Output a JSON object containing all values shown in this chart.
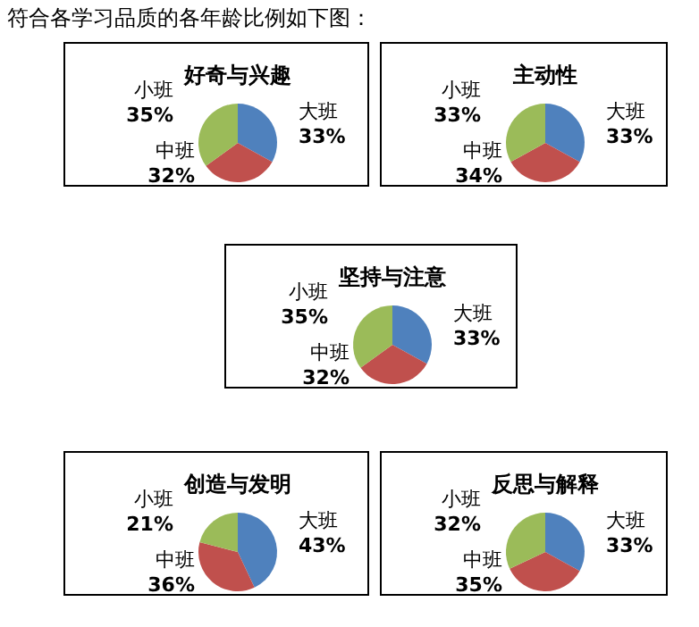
{
  "chart_data": [
    {
      "type": "pie",
      "title": "好奇与兴趣",
      "annotations": [
        "符合各学习品质的各年龄比例如下图："
      ],
      "categories": [
        "大班",
        "中班",
        "小班"
      ],
      "values": [
        33,
        32,
        35
      ],
      "colors": [
        "#4f81bd",
        "#c0504d",
        "#9bbb59"
      ],
      "value_labels": [
        "33%",
        "32%",
        "35%"
      ]
    },
    {
      "type": "pie",
      "title": "主动性",
      "categories": [
        "大班",
        "中班",
        "小班"
      ],
      "values": [
        33,
        34,
        33
      ],
      "colors": [
        "#4f81bd",
        "#c0504d",
        "#9bbb59"
      ],
      "value_labels": [
        "33%",
        "34%",
        "33%"
      ]
    },
    {
      "type": "pie",
      "title": "坚持与注意",
      "categories": [
        "大班",
        "中班",
        "小班"
      ],
      "values": [
        33,
        32,
        35
      ],
      "colors": [
        "#4f81bd",
        "#c0504d",
        "#9bbb59"
      ],
      "value_labels": [
        "33%",
        "32%",
        "35%"
      ]
    },
    {
      "type": "pie",
      "title": "创造与发明",
      "categories": [
        "大班",
        "中班",
        "小班"
      ],
      "values": [
        43,
        36,
        21
      ],
      "colors": [
        "#4f81bd",
        "#c0504d",
        "#9bbb59"
      ],
      "value_labels": [
        "43%",
        "36%",
        "21%"
      ]
    },
    {
      "type": "pie",
      "title": "反思与解释",
      "categories": [
        "大班",
        "中班",
        "小班"
      ],
      "values": [
        33,
        35,
        32
      ],
      "colors": [
        "#4f81bd",
        "#c0504d",
        "#9bbb59"
      ],
      "value_labels": [
        "33%",
        "35%",
        "32%"
      ]
    }
  ]
}
